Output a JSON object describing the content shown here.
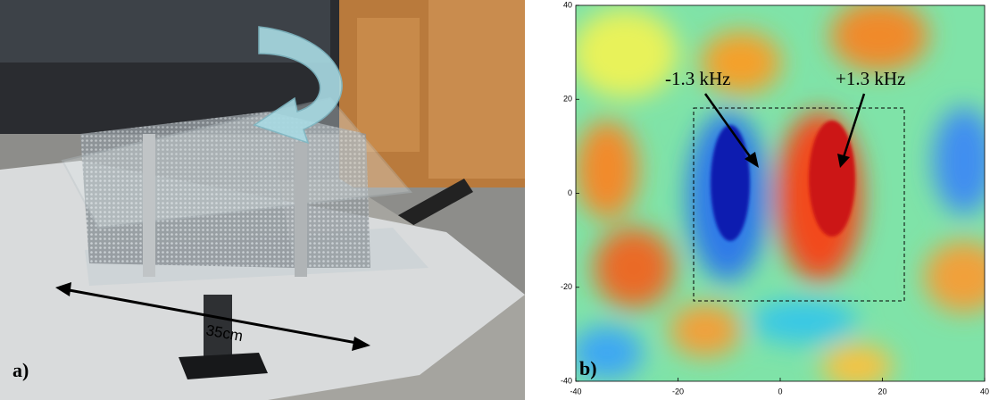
{
  "panel_a": {
    "label": "a)",
    "scale_label": "35cm"
  },
  "panel_b": {
    "label": "b)",
    "annotations": [
      "-1.3 kHz",
      "+1.3 kHz"
    ],
    "xticks": [
      -40,
      -20,
      0,
      20,
      40
    ],
    "yticks": [
      -40,
      -20,
      0,
      20,
      40
    ]
  }
}
